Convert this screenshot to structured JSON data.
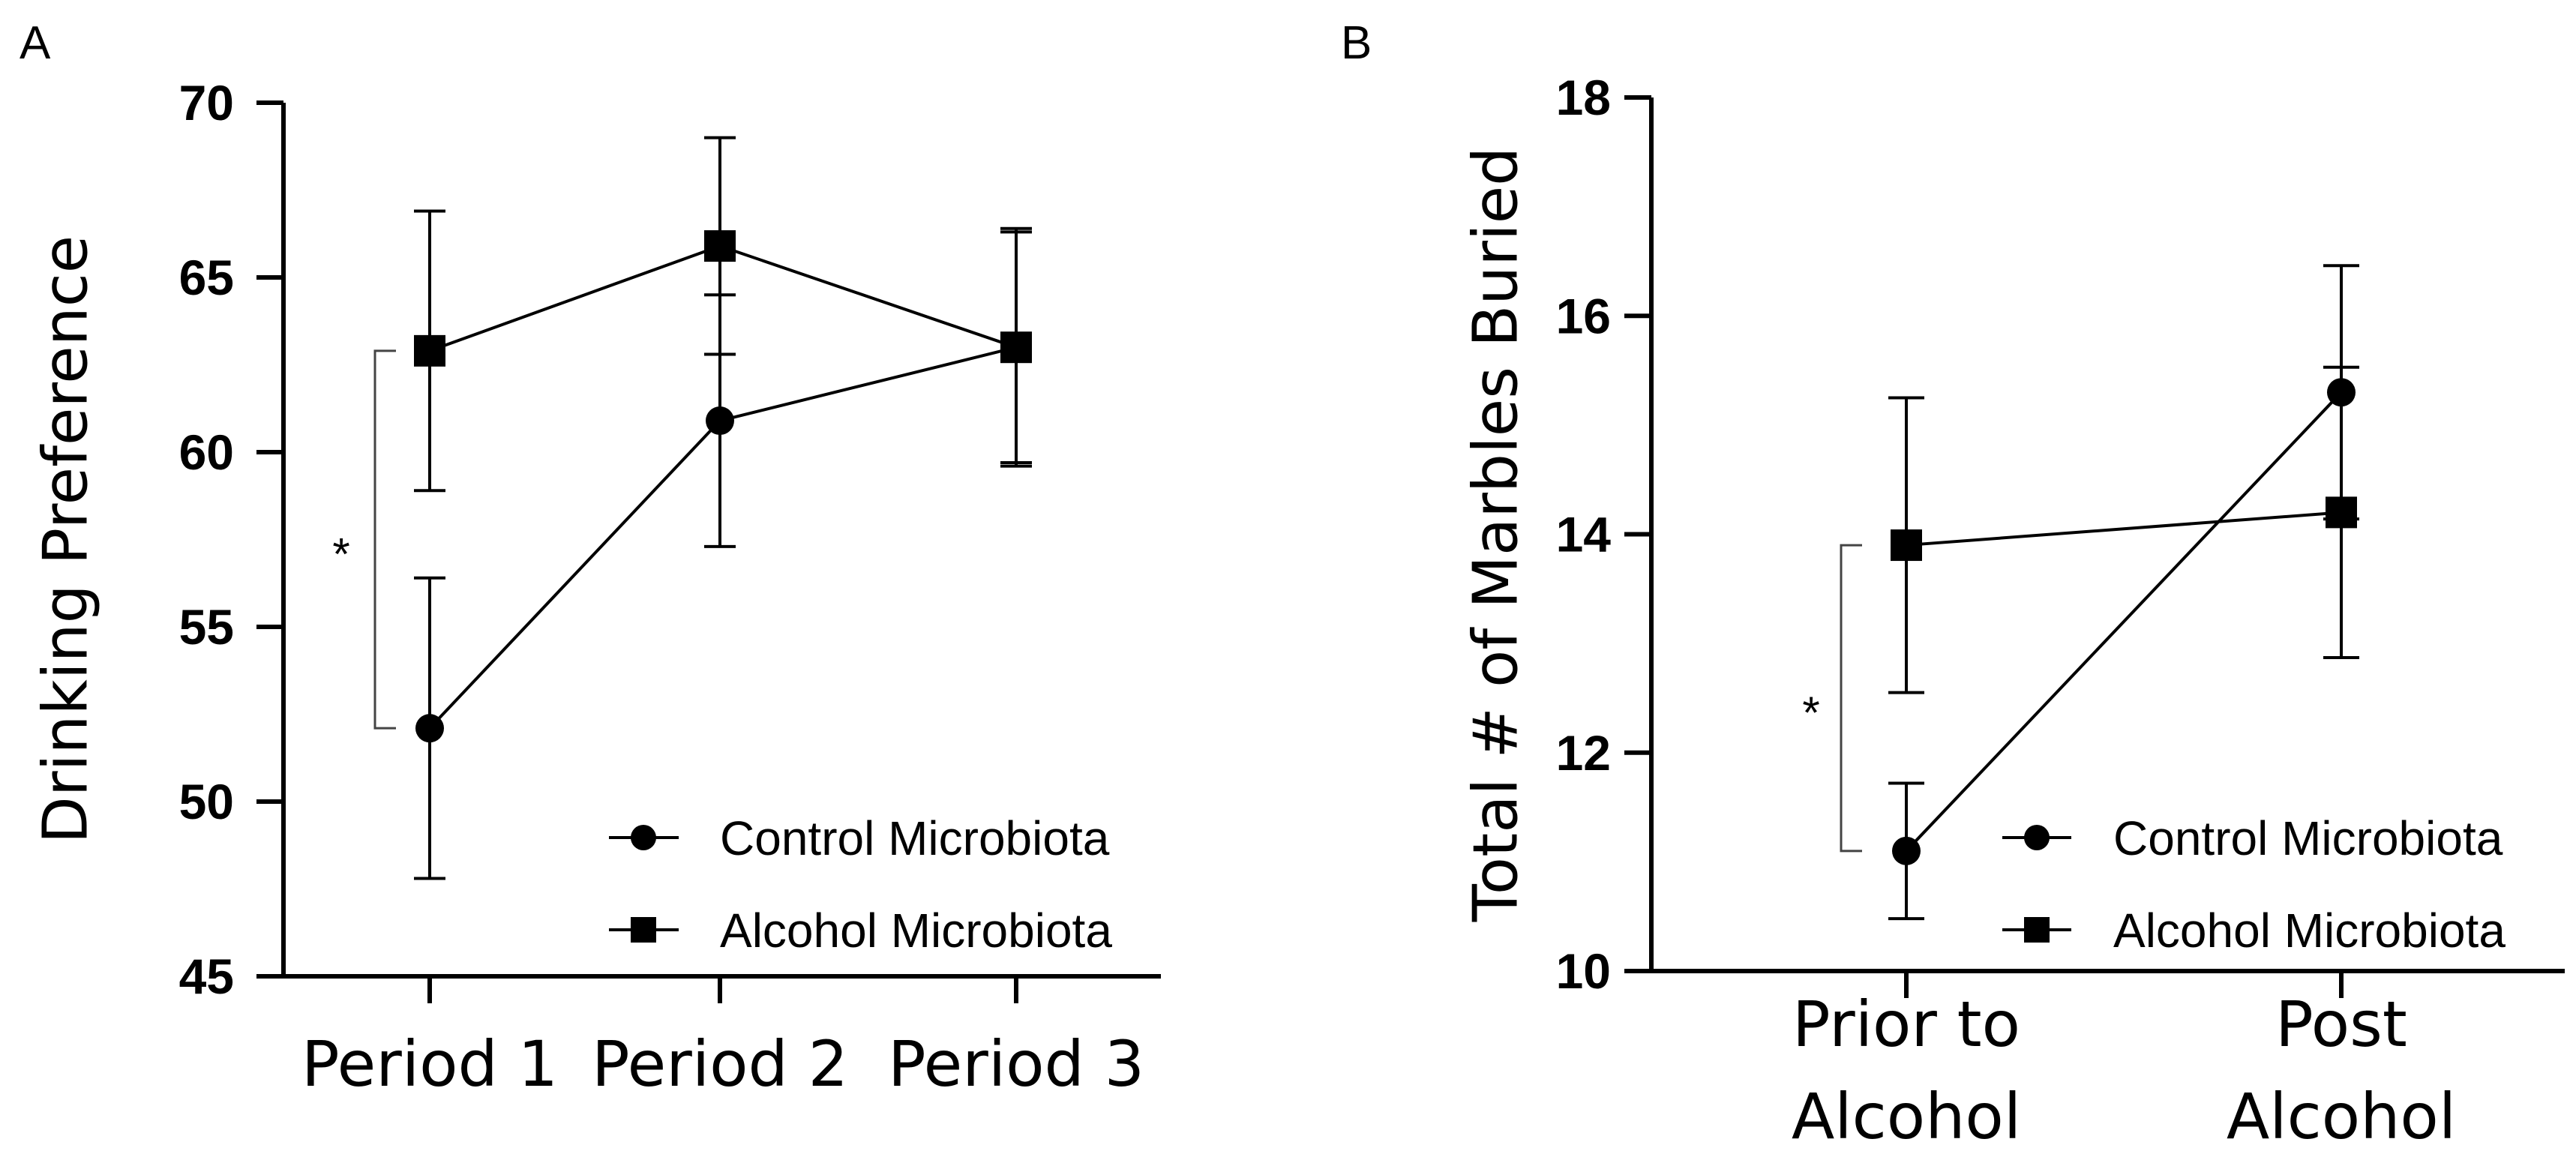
{
  "chart_data": [
    {
      "panel": "A",
      "type": "line",
      "title": "",
      "xlabel": "",
      "ylabel": "Drinking Preference",
      "categories": [
        "Period 1",
        "Period 2",
        "Period 3"
      ],
      "ylim": [
        45,
        70
      ],
      "yticks": [
        "45",
        "50",
        "55",
        "60",
        "65",
        "70"
      ],
      "series": [
        {
          "name": "Control Microbiota",
          "marker": "circle",
          "values": [
            52.1,
            60.9,
            63.0
          ],
          "errors": [
            4.3,
            3.6,
            3.4
          ]
        },
        {
          "name": "Alcohol Microbiota",
          "marker": "square",
          "values": [
            62.9,
            65.9,
            63.0
          ],
          "errors": [
            4.0,
            3.1,
            3.3
          ]
        }
      ],
      "annotations": [
        {
          "text": "*",
          "between": [
            "Control Microbiota",
            "Alcohol Microbiota"
          ],
          "category": "Period 1"
        }
      ],
      "legend": "bottom-right"
    },
    {
      "panel": "B",
      "type": "line",
      "title": "",
      "xlabel": "",
      "ylabel": "Total # of Marbles Buried",
      "categories": [
        [
          "Prior to",
          "Alcohol"
        ],
        [
          "Post",
          "Alcohol"
        ]
      ],
      "ylim": [
        10,
        18
      ],
      "yticks": [
        "10",
        "12",
        "14",
        "16",
        "18"
      ],
      "series": [
        {
          "name": "Control Microbiota",
          "marker": "circle",
          "values": [
            11.1,
            15.3
          ],
          "errors": [
            0.62,
            1.16
          ]
        },
        {
          "name": "Alcohol Microbiota",
          "marker": "square",
          "values": [
            13.9,
            14.2
          ],
          "errors": [
            1.35,
            1.33
          ]
        }
      ],
      "annotations": [
        {
          "text": "*",
          "between": [
            "Control Microbiota",
            "Alcohol Microbiota"
          ],
          "category": "Prior to Alcohol"
        }
      ],
      "legend": "bottom-right"
    }
  ]
}
